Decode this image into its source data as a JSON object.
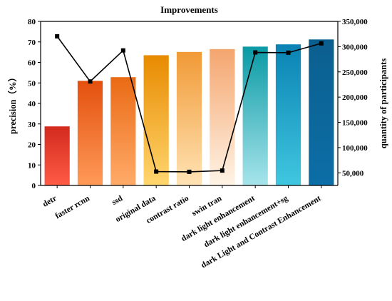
{
  "chart_data": {
    "type": "bar",
    "title": "Improvements",
    "xlabel": "",
    "ylabel": "precision（%）",
    "y2label": "quantity of participants",
    "ylim": [
      0,
      80
    ],
    "y2lim": [
      25000,
      350000
    ],
    "yticks": [
      "0",
      "10",
      "20",
      "30",
      "40",
      "50",
      "60",
      "70",
      "80"
    ],
    "y2ticks": [
      "50,000",
      "100,000",
      "150,000",
      "200,000",
      "250,000",
      "300,000",
      "350,000"
    ],
    "categories": [
      "detr",
      "faster rcnn",
      "ssd",
      "original data",
      "contrast ratio",
      "swin tran",
      "dark light enhancement",
      "dark light enhancement+sg",
      "dark Light and Contrast Enhancement"
    ],
    "series": [
      {
        "type": "bar",
        "axis": "left",
        "values": [
          28.8,
          51.0,
          52.8,
          63.5,
          65.1,
          66.5,
          67.7,
          68.8,
          71.2
        ],
        "gradients": [
          [
            "#d32a1e",
            "#ff5b46"
          ],
          [
            "#e4500e",
            "#ff9a58"
          ],
          [
            "#ea6a14",
            "#ffab6a"
          ],
          [
            "#e88a00",
            "#ffd66e"
          ],
          [
            "#f19a36",
            "#ffe3b4"
          ],
          [
            "#f4a56e",
            "#fff4e6"
          ],
          [
            "#0a9aa5",
            "#a7e4eb"
          ],
          [
            "#0a82b3",
            "#40c7e0"
          ],
          [
            "#0b5f8f",
            "#0c6ea6"
          ]
        ]
      },
      {
        "type": "line",
        "axis": "right",
        "values": [
          320500,
          231000,
          292500,
          52500,
          52000,
          54500,
          288500,
          288000,
          306500
        ],
        "color": "#000000"
      }
    ],
    "grid": false,
    "legend": "none"
  }
}
